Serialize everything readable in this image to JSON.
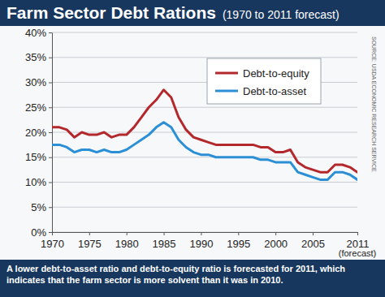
{
  "chart_data": {
    "type": "line",
    "title": "Farm Sector Debt Rations",
    "subtitle": "(1970 to 2011 forecast)",
    "annotations": [
      "(forecast)"
    ],
    "source": "SOURCE: USDA ECONOMIC RESEARCH SERVICE",
    "caption": "A lower debt-to-asset ratio and debt-to-equity ratio is forecasted for 2011, which indicates that the farm sector is more solvent than it was in 2010.",
    "x": [
      1970,
      1971,
      1972,
      1973,
      1974,
      1975,
      1976,
      1977,
      1978,
      1979,
      1980,
      1981,
      1982,
      1983,
      1984,
      1985,
      1986,
      1987,
      1988,
      1989,
      1990,
      1991,
      1992,
      1993,
      1994,
      1995,
      1996,
      1997,
      1998,
      1999,
      2000,
      2001,
      2002,
      2003,
      2004,
      2005,
      2006,
      2007,
      2008,
      2009,
      2010,
      2011
    ],
    "xlim": [
      1970,
      2011
    ],
    "xticks": [
      1970,
      1975,
      1980,
      1985,
      1990,
      1995,
      2000,
      2005,
      2011
    ],
    "ylim": [
      0,
      40
    ],
    "yticks": [
      {
        "value": 0,
        "label": "0%"
      },
      {
        "value": 5,
        "label": "5%"
      },
      {
        "value": 10,
        "label": "10%"
      },
      {
        "value": 15,
        "label": "15%"
      },
      {
        "value": 20,
        "label": "20%"
      },
      {
        "value": 25,
        "label": "25%"
      },
      {
        "value": 30,
        "label": "30%"
      },
      {
        "value": 35,
        "label": "35%"
      },
      {
        "value": 40,
        "label": "40%"
      }
    ],
    "grid": true,
    "legend": "top-right",
    "series": [
      {
        "name": "Debt-to-equity",
        "color": "#b3282d",
        "values": [
          21,
          21,
          20.5,
          19,
          20,
          19.5,
          19.5,
          20,
          19,
          19.5,
          19.5,
          21,
          23,
          25,
          26.5,
          28.5,
          27,
          23,
          20.5,
          19,
          18.5,
          18,
          17.5,
          17.5,
          17.5,
          17.5,
          17.5,
          17.5,
          17,
          17,
          16,
          16,
          16.5,
          14,
          13,
          12.5,
          12,
          12,
          13.5,
          13.5,
          13,
          12
        ]
      },
      {
        "name": "Debt-to-asset",
        "color": "#2b8fd5",
        "values": [
          17.5,
          17.5,
          17,
          16,
          16.5,
          16.5,
          16,
          16.5,
          16,
          16,
          16.5,
          17.5,
          18.5,
          19.5,
          21,
          22,
          21,
          18.5,
          17,
          16,
          15.5,
          15.5,
          15,
          15,
          15,
          15,
          15,
          15,
          14.5,
          14.5,
          14,
          14,
          14,
          12,
          11.5,
          11,
          10.5,
          10.5,
          12,
          12,
          11.5,
          10.5
        ]
      }
    ]
  }
}
